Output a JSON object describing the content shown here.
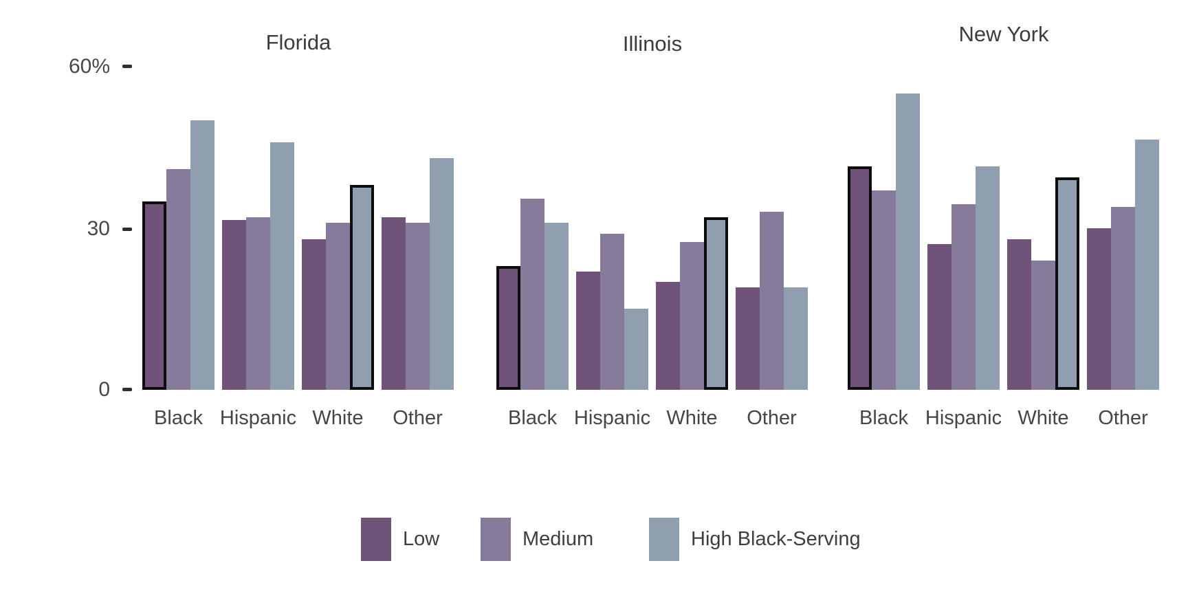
{
  "chart_data": {
    "type": "bar",
    "title": "",
    "y_axis": {
      "unit": "%",
      "min": 0,
      "max": 60,
      "ticks": [
        {
          "value": 60,
          "label": "60%"
        },
        {
          "value": 30,
          "label": "30"
        },
        {
          "value": 0,
          "label": "0"
        }
      ],
      "grid": false
    },
    "legend_position": "bottom",
    "series": [
      {
        "name": "Low",
        "color": "#6f5378"
      },
      {
        "name": "Medium",
        "color": "#867b9b"
      },
      {
        "name": "High Black-Serving",
        "color": "#8f9fb0"
      }
    ],
    "categories": [
      "Black",
      "Hispanic",
      "White",
      "Other"
    ],
    "highlight_outline_color": "#0d0d0d",
    "panels": [
      {
        "title": "Florida",
        "groups": [
          {
            "category": "Black",
            "values": [
              35,
              41,
              50
            ],
            "highlighted_series": "Low"
          },
          {
            "category": "Hispanic",
            "values": [
              31.5,
              32,
              46
            ],
            "highlighted_series": null
          },
          {
            "category": "White",
            "values": [
              28,
              31,
              38
            ],
            "highlighted_series": "High Black-Serving"
          },
          {
            "category": "Other",
            "values": [
              32,
              31,
              43
            ],
            "highlighted_series": null
          }
        ]
      },
      {
        "title": "Illinois",
        "groups": [
          {
            "category": "Black",
            "values": [
              23,
              35.5,
              31
            ],
            "highlighted_series": "Low"
          },
          {
            "category": "Hispanic",
            "values": [
              22,
              29,
              15
            ],
            "highlighted_series": null
          },
          {
            "category": "White",
            "values": [
              20,
              27.5,
              32
            ],
            "highlighted_series": "High Black-Serving"
          },
          {
            "category": "Other",
            "values": [
              19,
              33,
              19
            ],
            "highlighted_series": null
          }
        ]
      },
      {
        "title": "New York",
        "groups": [
          {
            "category": "Black",
            "values": [
              41.5,
              37,
              55
            ],
            "highlighted_series": "Low"
          },
          {
            "category": "Hispanic",
            "values": [
              27,
              34.5,
              41.5
            ],
            "highlighted_series": null
          },
          {
            "category": "White",
            "values": [
              28,
              24,
              39.5
            ],
            "highlighted_series": "High Black-Serving"
          },
          {
            "category": "Other",
            "values": [
              30,
              34,
              46.5
            ],
            "highlighted_series": null
          }
        ]
      }
    ]
  }
}
